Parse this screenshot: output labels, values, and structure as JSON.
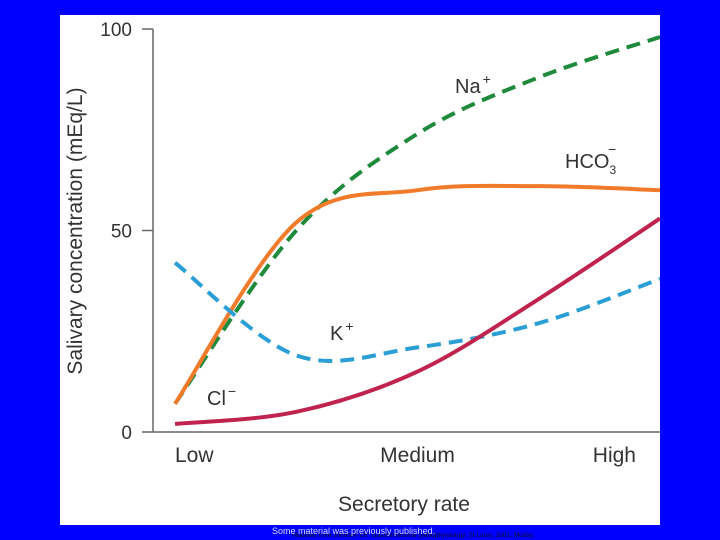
{
  "chart_data": {
    "type": "line",
    "title": "",
    "xlabel": "Secretory rate",
    "ylabel": "Salivary concentration (mEq/L)",
    "x": [
      0,
      0.25,
      0.5,
      0.75,
      1.0
    ],
    "categories": [
      "Low",
      "Medium",
      "High"
    ],
    "category_positions": [
      0,
      0.5,
      1.0
    ],
    "xlim": [
      0,
      1
    ],
    "ylim": [
      0,
      100
    ],
    "yticks": [
      0,
      50,
      100
    ],
    "series": [
      {
        "name": "Na+",
        "base": "Na",
        "sup": "+",
        "sub": "",
        "color": "#1f8a3c",
        "dash": "dashed",
        "values": [
          7,
          50,
          74,
          88,
          98
        ]
      },
      {
        "name": "HCO3−",
        "base": "HCO",
        "sup": "−",
        "sub": "3",
        "color": "#f07b2a",
        "dash": "solid",
        "values": [
          7,
          52,
          60,
          61,
          60
        ]
      },
      {
        "name": "K+",
        "base": "K",
        "sup": "+",
        "sub": "",
        "color": "#2a9fd6",
        "dash": "dashed",
        "values": [
          42,
          19,
          21,
          27,
          38
        ]
      },
      {
        "name": "Cl−",
        "base": "Cl",
        "sup": "−",
        "sub": "",
        "color": "#c0244e",
        "dash": "solid",
        "values": [
          2,
          5,
          15,
          33,
          53
        ]
      }
    ]
  },
  "source_note": "Modified from Johnson LR: Gastrointestinal pathophysiology, St Louis, 2001, Mosby.",
  "footer_note": "Some material was previously published."
}
